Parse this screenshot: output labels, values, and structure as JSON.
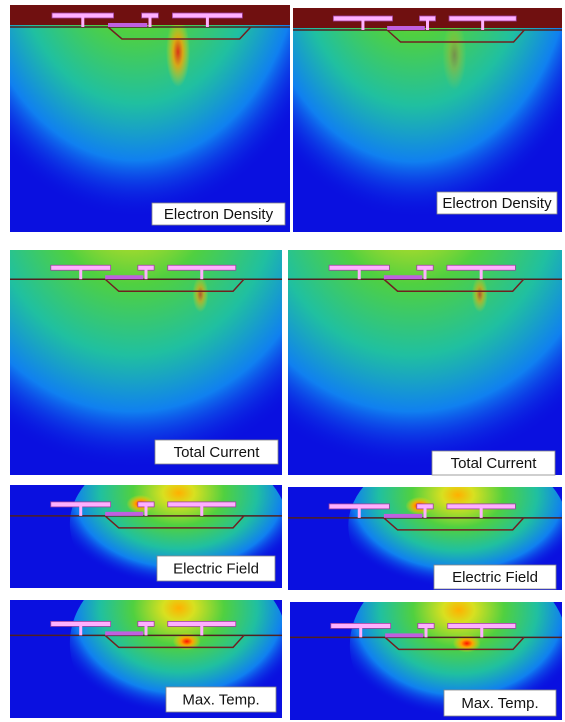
{
  "panels": [
    {
      "label": "Electron Density"
    },
    {
      "label": "Electron Density"
    },
    {
      "label": "Total Current"
    },
    {
      "label": "Total Current"
    },
    {
      "label": "Electric Field"
    },
    {
      "label": "Electric Field"
    },
    {
      "label": "Max. Temp."
    },
    {
      "label": "Max. Temp."
    }
  ]
}
